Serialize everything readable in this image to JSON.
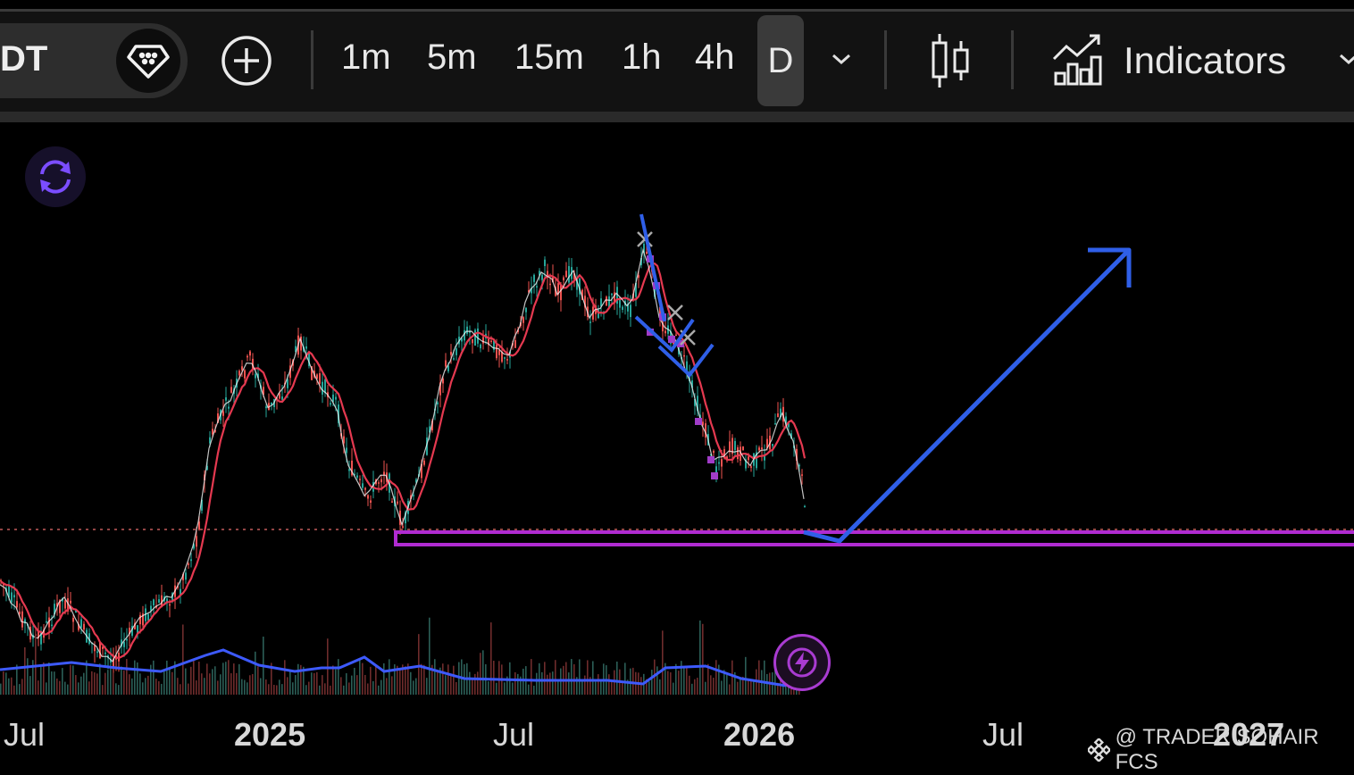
{
  "toolbar": {
    "symbol": "DT",
    "timeframes": [
      "1m",
      "5m",
      "15m",
      "1h",
      "4h"
    ],
    "selected_timeframe": "D",
    "indicators_label": "Indicators"
  },
  "icons": {
    "favorite": "diamond-gem-icon",
    "add": "plus-circle-icon",
    "timeframe_dropdown": "chevron-down-icon",
    "chart_type": "candlestick-icon",
    "indicators": "bar-chart-trend-icon",
    "indicators_dropdown": "chevron-down-icon",
    "refresh": "refresh-icon",
    "alert": "lightning-bolt-icon",
    "watermark_logo": "binance-logo-icon"
  },
  "chart": {
    "x_axis_labels": [
      "Jul",
      "2025",
      "Jul",
      "2026",
      "Jul",
      "2027"
    ],
    "watermark": "@ TRADER SOHAIR FCS",
    "colors": {
      "up_candle": "#26a69a",
      "down_candle": "#ef5350",
      "moving_average": "#e53950",
      "volume_ma": "#3d5afe",
      "support_zone": "#b02bd1",
      "projection": "#2f5fe8",
      "toolbar_bg": "#121212"
    }
  }
}
